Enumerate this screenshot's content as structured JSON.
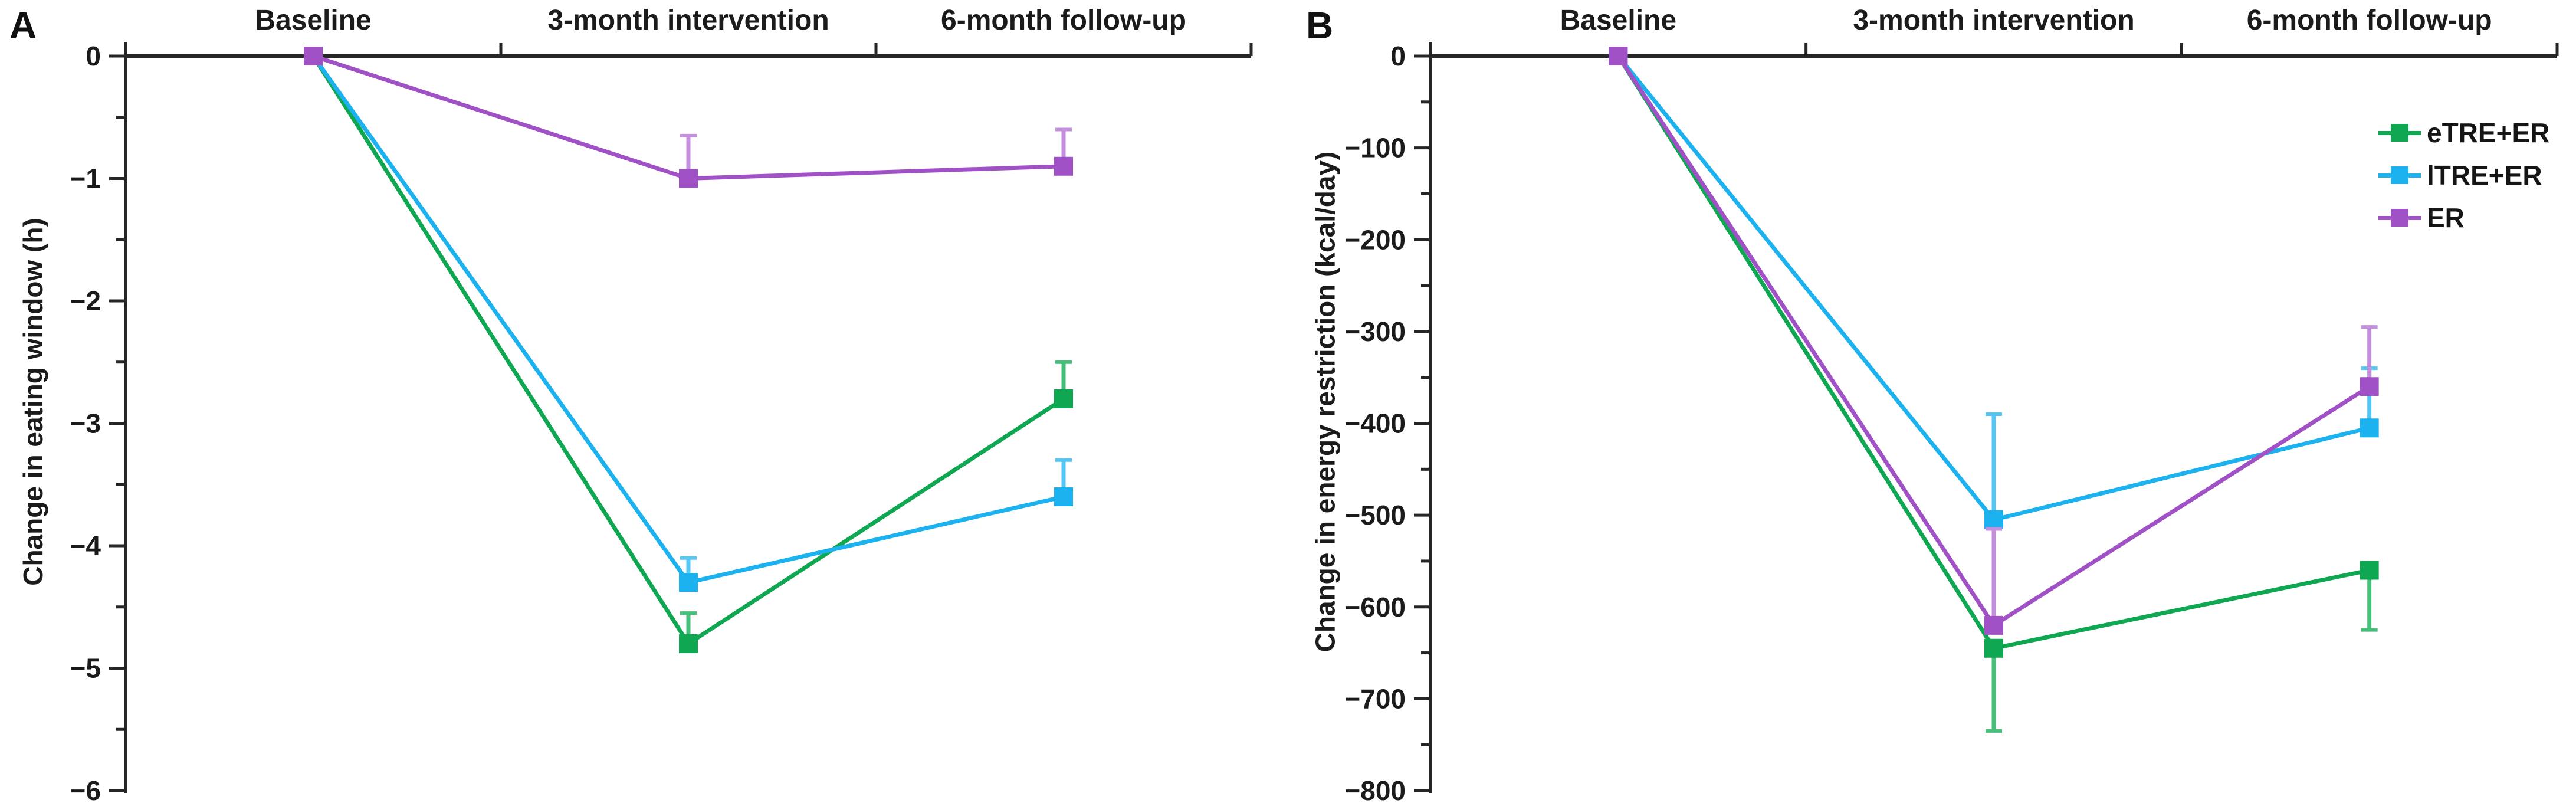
{
  "chart_data": [
    {
      "type": "line",
      "panel_label": "A",
      "ylabel": "Change in eating window (h)",
      "xlabel": "",
      "categories": [
        "Baseline",
        "3-month intervention",
        "6-month follow-up"
      ],
      "ylim": [
        0,
        -6
      ],
      "ymajor": 1,
      "yminor": 0.5,
      "grid": false,
      "legend_position": "none",
      "series": [
        {
          "name": "eTRE+ER",
          "color": "#0FA751",
          "err_color": "#45BF79",
          "marker": "square",
          "values": [
            0,
            -4.8,
            -2.8
          ],
          "errors": [
            null,
            {
              "dir": "up",
              "len": 0.25
            },
            {
              "dir": "up",
              "len": 0.3
            }
          ]
        },
        {
          "name": "lTRE+ER",
          "color": "#1CB2F0",
          "err_color": "#55C7F4",
          "marker": "square",
          "values": [
            0,
            -4.3,
            -3.6
          ],
          "errors": [
            null,
            {
              "dir": "up",
              "len": 0.2
            },
            {
              "dir": "up",
              "len": 0.3
            }
          ]
        },
        {
          "name": "ER",
          "color": "#A151C6",
          "err_color": "#C490DE",
          "marker": "square",
          "values": [
            0,
            -1.0,
            -0.9
          ],
          "errors": [
            null,
            {
              "dir": "up",
              "len": 0.35
            },
            {
              "dir": "up",
              "len": 0.3
            }
          ]
        }
      ]
    },
    {
      "type": "line",
      "panel_label": "B",
      "ylabel": "Change in energy restriction (kcal/day)",
      "xlabel": "",
      "categories": [
        "Baseline",
        "3-month intervention",
        "6-month follow-up"
      ],
      "ylim": [
        0,
        -800
      ],
      "ymajor": 100,
      "yminor": 50,
      "grid": false,
      "legend_position": "top-right",
      "series": [
        {
          "name": "eTRE+ER",
          "color": "#0FA751",
          "err_color": "#45BF79",
          "marker": "square",
          "values": [
            0,
            -645,
            -560
          ],
          "errors": [
            null,
            {
              "dir": "down",
              "len": 90
            },
            {
              "dir": "down",
              "len": 65
            }
          ]
        },
        {
          "name": "lTRE+ER",
          "color": "#1CB2F0",
          "err_color": "#55C7F4",
          "marker": "square",
          "values": [
            0,
            -505,
            -405
          ],
          "errors": [
            null,
            {
              "dir": "up",
              "len": 115
            },
            {
              "dir": "up",
              "len": 65
            }
          ]
        },
        {
          "name": "ER",
          "color": "#A151C6",
          "err_color": "#C490DE",
          "marker": "square",
          "values": [
            0,
            -620,
            -360
          ],
          "errors": [
            null,
            {
              "dir": "up",
              "len": 105
            },
            {
              "dir": "up",
              "len": 65
            }
          ]
        }
      ]
    }
  ],
  "legend": {
    "entries": [
      {
        "label": "eTRE+ER",
        "color": "#0FA751"
      },
      {
        "label": "lTRE+ER",
        "color": "#1CB2F0"
      },
      {
        "label": "ER",
        "color": "#A151C6"
      }
    ]
  },
  "colors": {
    "axis": "#262626",
    "text": "#1b1b1b",
    "background": "#ffffff"
  }
}
